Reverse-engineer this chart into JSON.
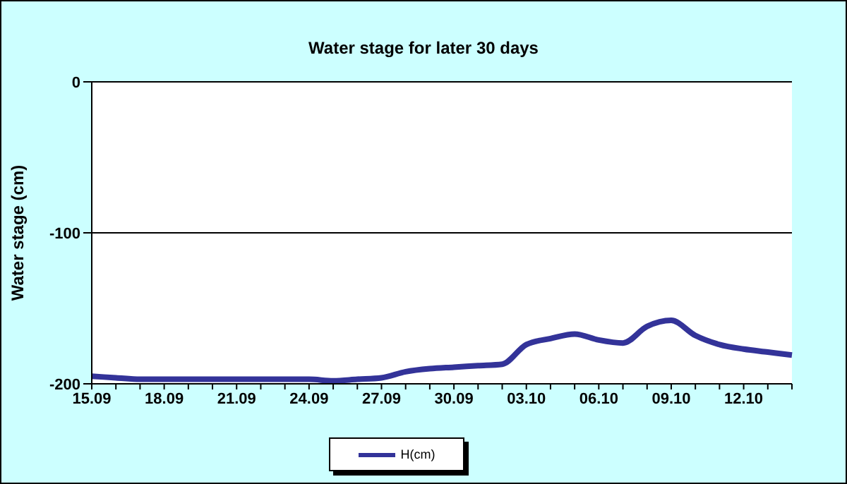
{
  "chart_data": {
    "type": "line",
    "title": "Water stage for later 30 days",
    "ylabel": "Water stage (cm)",
    "categories": [
      "15.09",
      null,
      null,
      "18.09",
      null,
      null,
      "21.09",
      null,
      null,
      "24.09",
      null,
      null,
      "27.09",
      null,
      null,
      "30.09",
      null,
      null,
      "03.10",
      null,
      null,
      "06.10",
      null,
      null,
      "09.10",
      null,
      null,
      "12.10",
      null,
      null
    ],
    "series": [
      {
        "name": "H(cm)",
        "color": "#333399",
        "values": [
          -195,
          -196,
          -197,
          -197,
          -197,
          -197,
          -197,
          -197,
          -197,
          -197,
          -198,
          -197,
          -196,
          -192,
          -190,
          -189,
          -188,
          -187,
          -174,
          -170,
          -167,
          -171,
          -173,
          -162,
          -158,
          -168,
          -174,
          -177,
          -179,
          -181
        ]
      }
    ],
    "ylim": [
      -200,
      0
    ],
    "yticks": [
      -200,
      -100,
      0
    ],
    "grid": "y",
    "legend": "bottom",
    "marker": "none",
    "line_style": "solid"
  }
}
